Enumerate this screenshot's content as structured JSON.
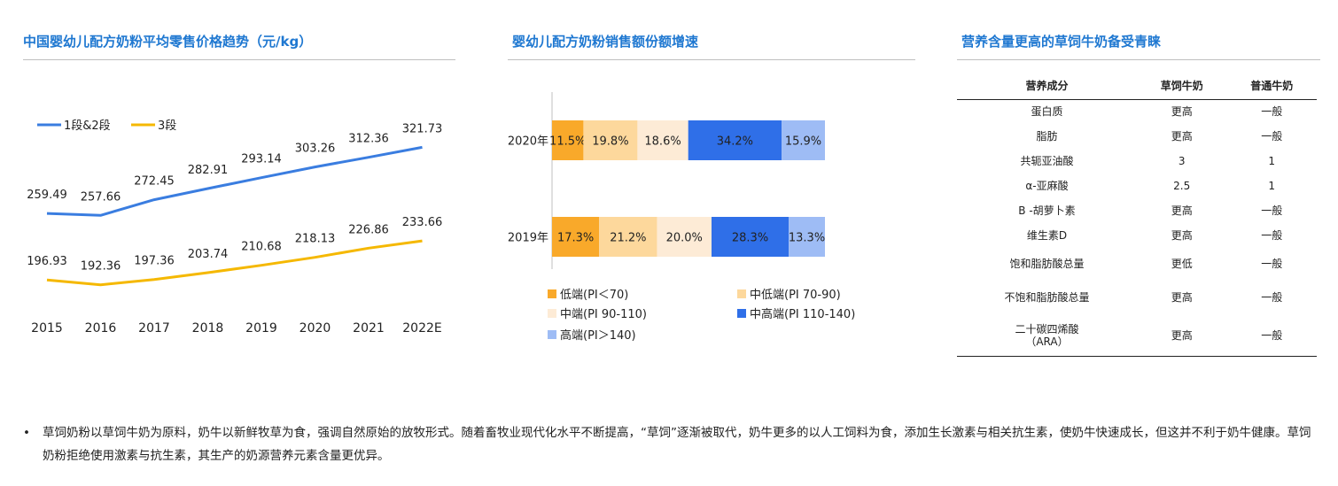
{
  "panel1": {
    "title": "中国婴幼儿配方奶粉平均零售价格趋势（元/kg）"
  },
  "panel2": {
    "title": "婴幼儿配方奶粉销售额份额增速"
  },
  "panel3": {
    "title": "营养含量更高的草饲牛奶备受青睐",
    "headers": [
      "营养成分",
      "草饲牛奶",
      "普通牛奶"
    ],
    "rows": [
      [
        "蛋白质",
        "更高",
        "一般"
      ],
      [
        "脂肪",
        "更高",
        "一般"
      ],
      [
        "共轭亚油酸",
        "3",
        "1"
      ],
      [
        "α-亚麻酸",
        "2.5",
        "1"
      ],
      [
        "Β -胡萝卜素",
        "更高",
        "一般"
      ],
      [
        "维生素D",
        "更高",
        "一般"
      ],
      [
        "饱和脂肪酸总量",
        "更低",
        "一般"
      ],
      [
        "不饱和脂肪酸总量",
        "更高",
        "一般"
      ],
      [
        "二十碳四烯酸\n（ARA）",
        "更高",
        "一般"
      ]
    ]
  },
  "footnote": {
    "bullet": "•",
    "text": "草饲奶粉以草饲牛奶为原料，奶牛以新鲜牧草为食，强调自然原始的放牧形式。随着畜牧业现代化水平不断提高，“草饲”逐渐被取代，奶牛更多的以人工饲料为食，添加生长激素与相关抗生素，使奶牛快速成长，但这并不利于奶牛健康。草饲奶粉拒绝使用激素与抗生素，其生产的奶源营养元素含量更优异。"
  },
  "chart_data": [
    {
      "type": "line",
      "title": "中国婴幼儿配方奶粉平均零售价格趋势（元/kg）",
      "categories": [
        "2015",
        "2016",
        "2017",
        "2018",
        "2019",
        "2020",
        "2021",
        "2022E"
      ],
      "series": [
        {
          "name": "1段&2段",
          "color": "#3a7de0",
          "values": [
            259.49,
            257.66,
            272.45,
            282.91,
            293.14,
            303.26,
            312.36,
            321.73
          ]
        },
        {
          "name": "3段",
          "color": "#f5b800",
          "values": [
            196.93,
            192.36,
            197.36,
            203.74,
            210.68,
            218.13,
            226.86,
            233.66
          ]
        }
      ],
      "legend": "top-left",
      "grid": false,
      "data_labels": true
    },
    {
      "type": "bar",
      "orientation": "horizontal",
      "stacked": "percent",
      "title": "婴幼儿配方奶粉销售额份额增速",
      "categories": [
        "2020年",
        "2019年"
      ],
      "series": [
        {
          "name": "低端(PI＜70)",
          "color": "#f9a92a",
          "values": [
            11.5,
            17.3
          ]
        },
        {
          "name": "中低端(PI 70-90)",
          "color": "#fdd89c",
          "values": [
            19.8,
            21.2
          ]
        },
        {
          "name": "中端(PI 90-110)",
          "color": "#fdebd6",
          "values": [
            18.6,
            20.0
          ]
        },
        {
          "name": "中高端(PI 110-140)",
          "color": "#2f6fe8",
          "values": [
            34.2,
            28.3
          ]
        },
        {
          "name": "高端(PI＞140)",
          "color": "#9ebcf5",
          "values": [
            15.9,
            13.3
          ]
        }
      ],
      "value_suffix": "%",
      "legend": "bottom",
      "grid": false
    }
  ]
}
